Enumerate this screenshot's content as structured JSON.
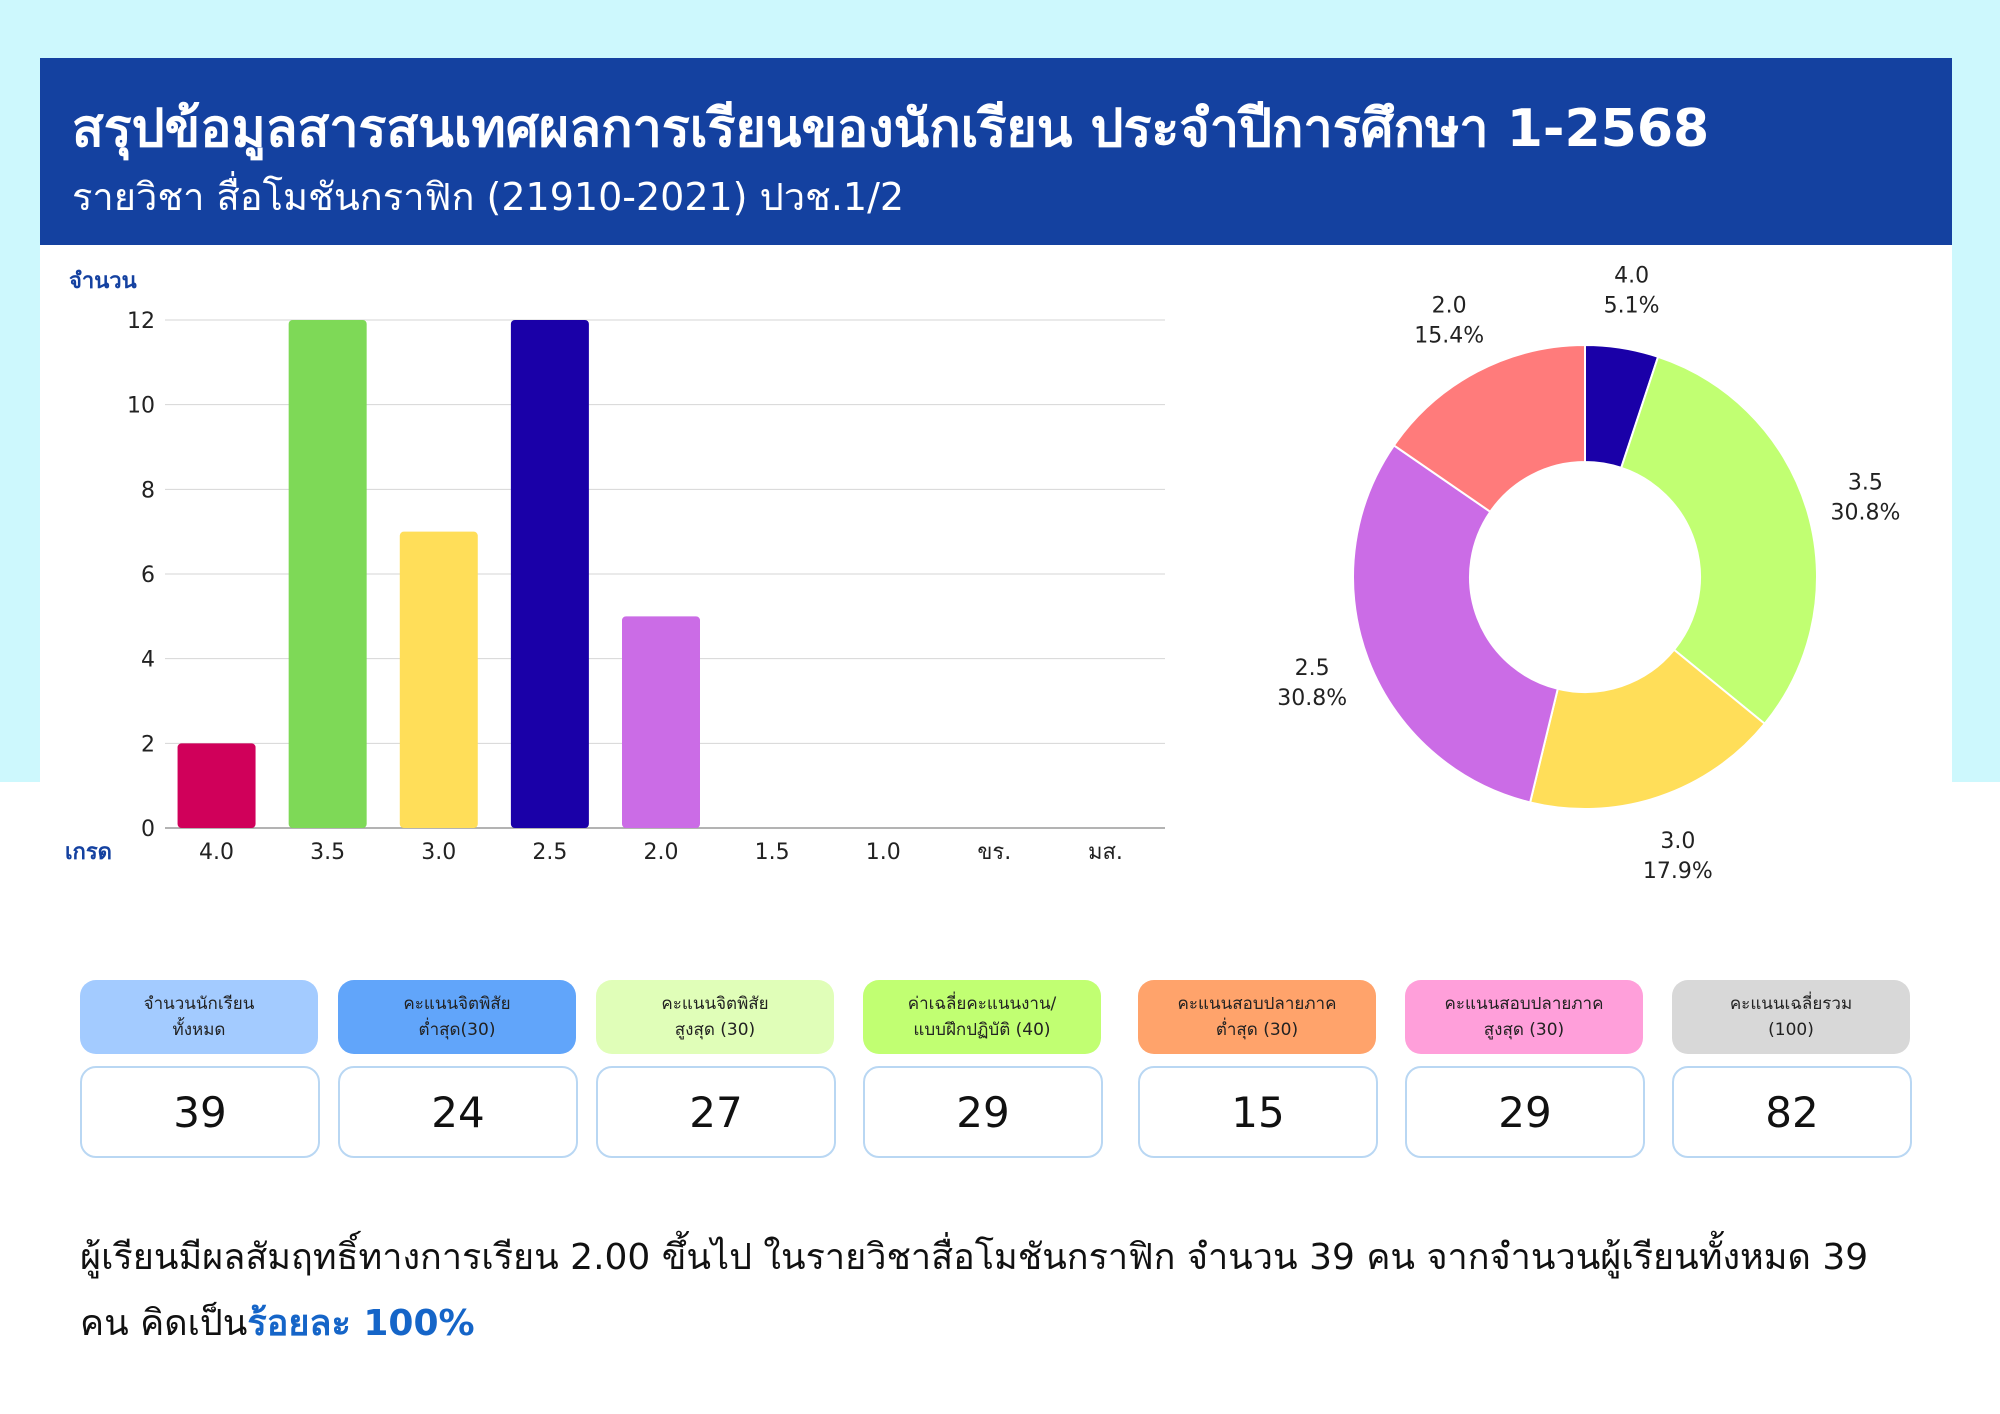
{
  "header": {
    "title": "สรุปข้อมูลสารสนเทศผลการเรียนของนักเรียน ประจำปีการศึกษา 1-2568",
    "subtitle": "รายวิชา สื่อโมชันกราฟิก (21910-2021) ปวช.1/2"
  },
  "chart_data": [
    {
      "type": "bar",
      "ylabel": "จำนวน",
      "xlabel": "เกรด",
      "categories": [
        "4.0",
        "3.5",
        "3.0",
        "2.5",
        "2.0",
        "1.5",
        "1.0",
        "ขร.",
        "มส."
      ],
      "values": [
        2,
        12,
        7,
        12,
        5,
        0,
        0,
        0,
        0
      ],
      "colors": [
        "#d0005a",
        "#7ed957",
        "#ffde59",
        "#1a00a8",
        "#cb6ce6",
        "#cccccc",
        "#cccccc",
        "#cccccc",
        "#cccccc"
      ],
      "ylim": [
        0,
        12
      ],
      "yticks": [
        0,
        2,
        4,
        6,
        8,
        10,
        12
      ],
      "grid": true
    },
    {
      "type": "pie",
      "style": "donut",
      "labels": [
        "4.0",
        "3.5",
        "3.0",
        "2.5",
        "2.0"
      ],
      "values": [
        5.1,
        30.8,
        17.9,
        30.8,
        15.4
      ],
      "percent_labels": [
        "5.1%",
        "30.8%",
        "17.9%",
        "30.8%",
        "15.4%"
      ],
      "colors": [
        "#1a00a8",
        "#c1ff72",
        "#ffde59",
        "#cb6ce6",
        "#ff7b7b"
      ]
    }
  ],
  "stats": [
    {
      "label": "จำนวนนักเรียน\nทั้งหมด",
      "value": "39",
      "color": "#a3cbff"
    },
    {
      "label": "คะแนนจิตพิสัย\nต่ำสุด(30)",
      "value": "24",
      "color": "#61a5fa"
    },
    {
      "label": "คะแนนจิตพิสัย\nสูงสุด (30)",
      "value": "27",
      "color": "#e0feb8"
    },
    {
      "label": "ค่าเฉลี่ยคะแนนงาน/\nแบบฝึกปฏิบัติ (40)",
      "value": "29",
      "color": "#c1ff72"
    },
    {
      "label": "คะแนนสอบปลายภาค\nต่ำสุด (30)",
      "value": "15",
      "color": "#ffa36b"
    },
    {
      "label": "คะแนนสอบปลายภาค\nสูงสุด (30)",
      "value": "29",
      "color": "#ff9fda"
    },
    {
      "label": "คะแนนเฉลี่ยรวม\n(100)",
      "value": "82",
      "color": "#d8d8d8"
    }
  ],
  "summary": {
    "text": "ผู้เรียนมีผลสัมฤทธิ์ทางการเรียน 2.00 ขึ้นไป ในรายวิชาสื่อโมชันกราฟิก จำนวน 39 คน จากจำนวนผู้เรียนทั้งหมด 39 คน คิดเป็น",
    "highlight": "ร้อยละ 100%"
  }
}
